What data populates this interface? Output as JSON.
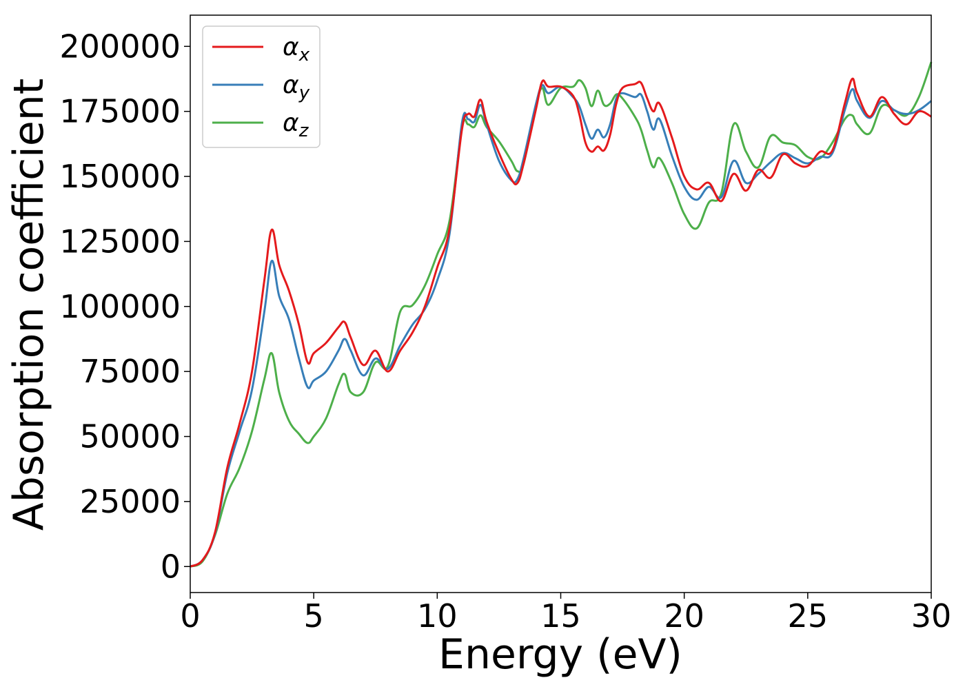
{
  "chart_data": {
    "type": "line",
    "title": "",
    "xlabel": "Energy (eV)",
    "ylabel": "Absorption coefficient",
    "xlim": [
      0,
      30
    ],
    "ylim": [
      -10000,
      212000
    ],
    "xticks": [
      0,
      5,
      10,
      15,
      20,
      25,
      30
    ],
    "xtick_labels": [
      "0",
      "5",
      "10",
      "15",
      "20",
      "25",
      "30"
    ],
    "yticks": [
      0,
      25000,
      50000,
      75000,
      100000,
      125000,
      150000,
      175000,
      200000
    ],
    "ytick_labels": [
      "0",
      "25000",
      "50000",
      "75000",
      "100000",
      "125000",
      "150000",
      "175000",
      "200000"
    ],
    "grid": false,
    "legend_position": "top-left",
    "x": [
      0,
      0.5,
      1.0,
      1.5,
      2.0,
      2.5,
      3.0,
      3.3,
      3.6,
      4.0,
      4.4,
      4.75,
      5.0,
      5.5,
      6.0,
      6.25,
      6.5,
      7.0,
      7.5,
      8.0,
      8.5,
      9.0,
      9.5,
      10.0,
      10.5,
      11.0,
      11.25,
      11.5,
      11.75,
      12.0,
      12.5,
      13.0,
      13.25,
      13.5,
      14.0,
      14.25,
      14.5,
      15.0,
      15.5,
      15.75,
      16.0,
      16.25,
      16.5,
      16.75,
      17.0,
      17.25,
      17.5,
      18.0,
      18.25,
      18.5,
      18.75,
      19.0,
      19.5,
      20.0,
      20.5,
      21.0,
      21.5,
      22.0,
      22.5,
      23.0,
      23.5,
      24.0,
      24.5,
      25.0,
      25.5,
      26.0,
      26.5,
      26.8,
      27.0,
      27.5,
      28.0,
      28.5,
      29.0,
      29.5,
      30.0
    ],
    "series": [
      {
        "name": "α_x",
        "color": "#e41a1c",
        "values": [
          0,
          2500,
          13000,
          38000,
          55000,
          75000,
          110000,
          129500,
          116000,
          106000,
          93000,
          78500,
          82000,
          86000,
          92000,
          94000,
          88000,
          77500,
          83000,
          75000,
          83000,
          90000,
          100000,
          115000,
          130000,
          168000,
          174000,
          173000,
          179500,
          171000,
          159000,
          149000,
          147500,
          155000,
          176000,
          186500,
          184500,
          184500,
          181000,
          174000,
          163000,
          159500,
          161500,
          160000,
          166000,
          178000,
          184000,
          185500,
          186000,
          180000,
          175000,
          178000,
          165000,
          150000,
          145000,
          147500,
          140500,
          151000,
          144500,
          152500,
          149500,
          158500,
          155000,
          154000,
          159500,
          160000,
          178000,
          187500,
          182000,
          173000,
          180500,
          174000,
          170000,
          175000,
          173000
        ]
      },
      {
        "name": "α_y",
        "color": "#377eb8",
        "values": [
          0,
          2500,
          12500,
          36000,
          52000,
          68000,
          98000,
          117500,
          104000,
          95000,
          80000,
          69000,
          71500,
          75000,
          83000,
          87500,
          83000,
          73500,
          80000,
          76000,
          85000,
          93000,
          99000,
          110000,
          128000,
          170500,
          172000,
          171000,
          177500,
          170000,
          156000,
          148500,
          149000,
          157000,
          178000,
          185000,
          182000,
          184500,
          180500,
          177000,
          170000,
          164500,
          168000,
          165000,
          170000,
          180000,
          182000,
          180500,
          181500,
          175000,
          168000,
          172000,
          158000,
          146000,
          141000,
          146000,
          142000,
          156000,
          147500,
          151000,
          155500,
          159000,
          157000,
          155000,
          157500,
          159000,
          175500,
          183500,
          179000,
          172500,
          179000,
          175500,
          174000,
          175500,
          179000
        ]
      },
      {
        "name": "α_z",
        "color": "#4daf4a",
        "values": [
          0,
          2000,
          12000,
          28000,
          38000,
          52000,
          72000,
          82000,
          67000,
          56000,
          51000,
          47500,
          50000,
          57000,
          70000,
          74000,
          67000,
          67000,
          78500,
          77000,
          98000,
          100500,
          108000,
          120000,
          133000,
          168500,
          170000,
          169000,
          173500,
          169000,
          163500,
          156000,
          152000,
          155000,
          177000,
          184000,
          177500,
          184000,
          184500,
          187000,
          184000,
          177000,
          183000,
          177500,
          178000,
          181500,
          180000,
          173000,
          168000,
          160000,
          153500,
          157000,
          147500,
          135500,
          130000,
          140000,
          143500,
          170000,
          159500,
          153500,
          165500,
          163000,
          162000,
          157500,
          157000,
          163000,
          172000,
          173500,
          170000,
          166500,
          177000,
          175500,
          173500,
          180500,
          194000
        ]
      }
    ]
  }
}
